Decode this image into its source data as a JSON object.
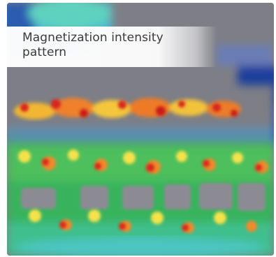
{
  "caption": "Magnetization intensity pattern",
  "palette": {
    "background_grey": "#7e7f86",
    "deep_blue": "#1f4fa8",
    "cyan": "#46c4d8",
    "green": "#3fbf5a",
    "yellow": "#e8e24a",
    "orange": "#f08a2a",
    "red": "#d8261c"
  }
}
